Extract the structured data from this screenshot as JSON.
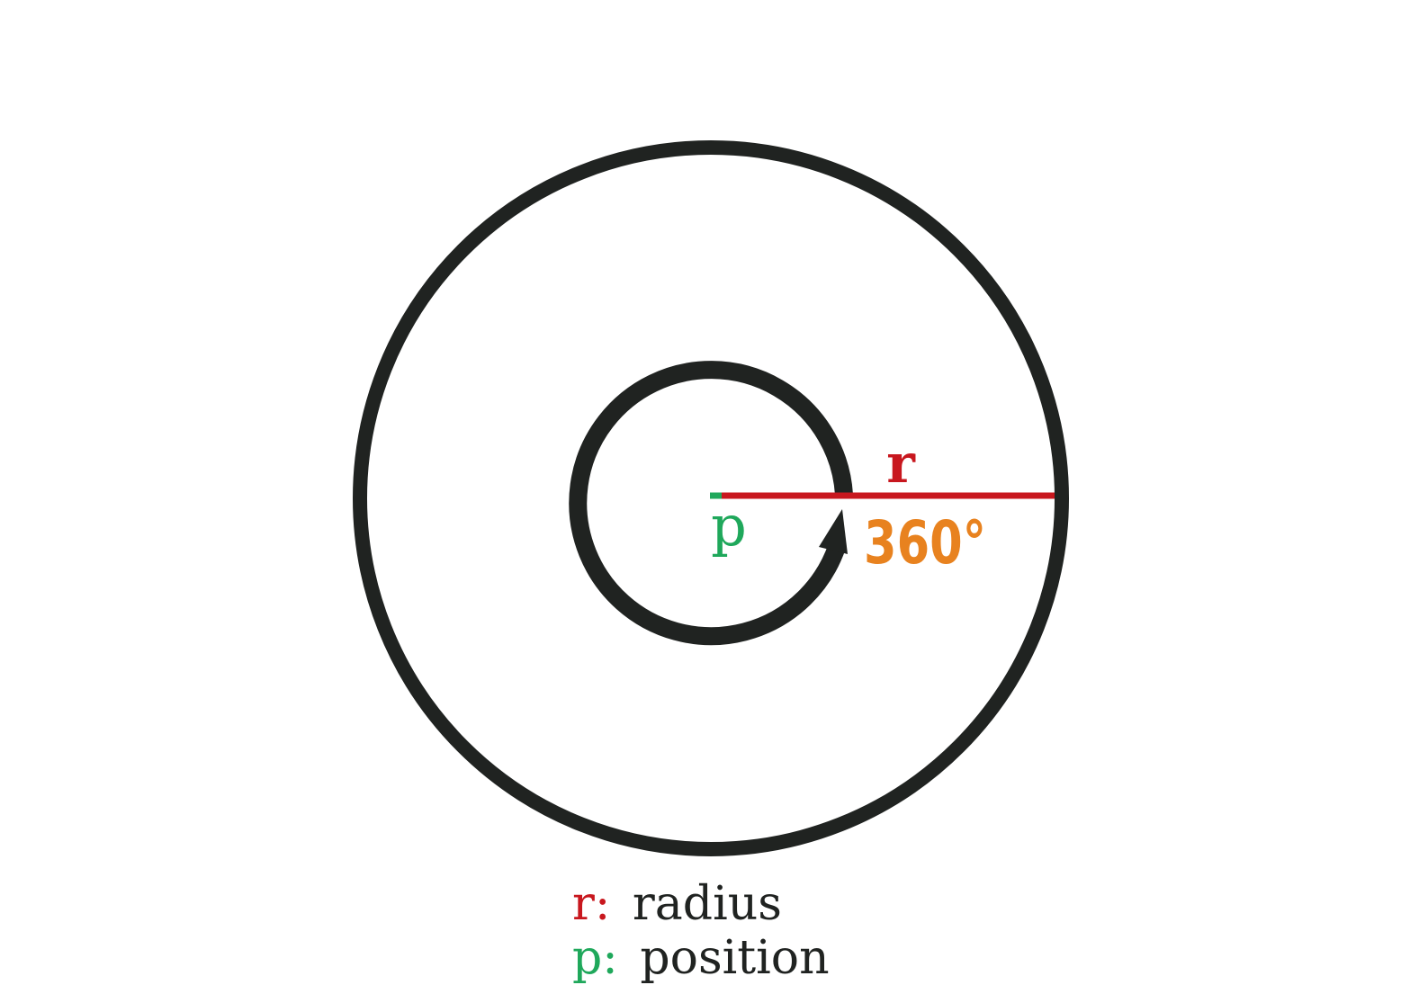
{
  "diagram": {
    "labels": {
      "radius_symbol": "r",
      "position_symbol": "p",
      "angle": "360°"
    },
    "legend": [
      {
        "key": "r:",
        "text": "radius",
        "key_color": "#c8171e"
      },
      {
        "key": "p:",
        "text": "position",
        "key_color": "#1fa85b"
      }
    ],
    "colors": {
      "outline": "#202321",
      "radius": "#c8171e",
      "position": "#1fa85b",
      "angle": "#e8821f",
      "legend_text": "#202321"
    }
  }
}
